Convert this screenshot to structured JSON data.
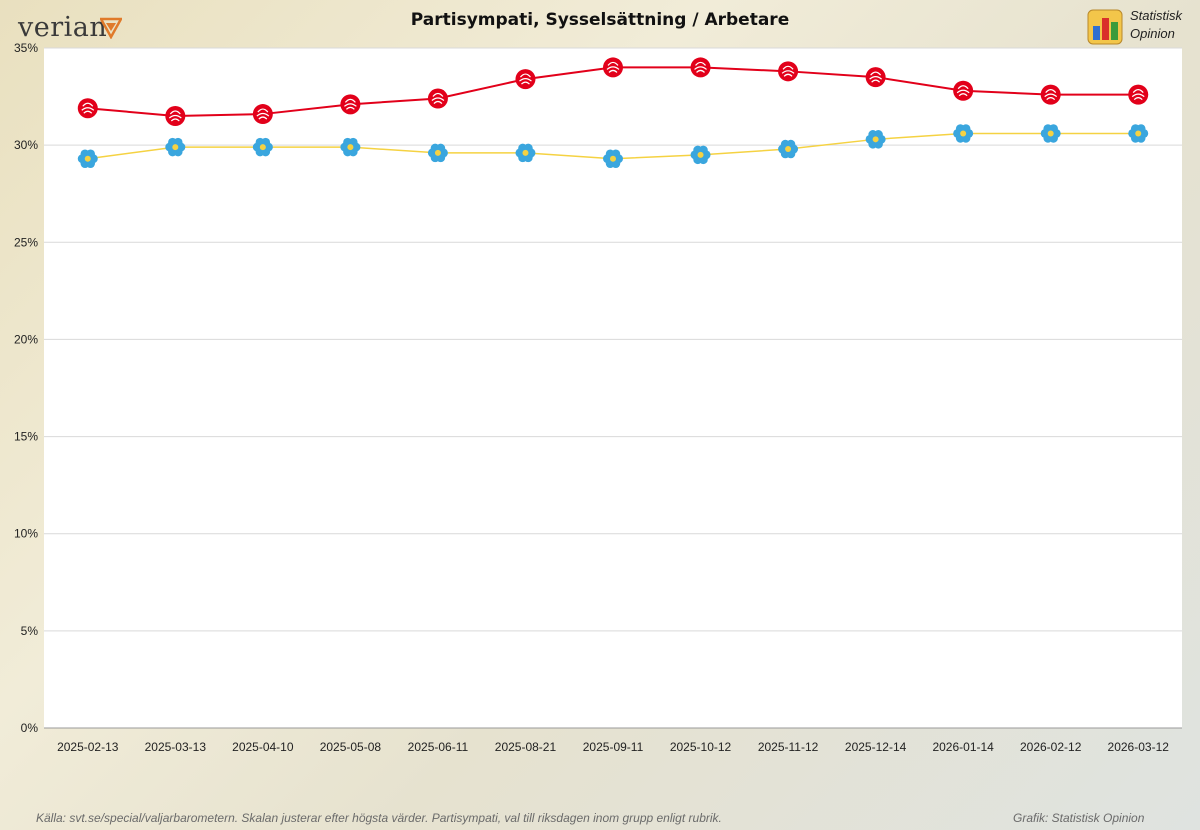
{
  "brand": {
    "logo_text": "verian",
    "publisher_line1": "Statistisk",
    "publisher_line2": "Opinion"
  },
  "footer": {
    "source": "Källa: svt.se/special/valjarbarometern.  Skalan justerar  efter högsta värder.  Partisympati,  val till riksdagen  inom grupp enligt rubrik.",
    "credit": "Grafik: Statistisk Opinion"
  },
  "colors": {
    "S": "#e2001a",
    "SD": "#f5d242",
    "SD_marker": "#3aa6de",
    "grid": "#d9d9d9"
  },
  "chart_data": {
    "type": "line",
    "title": "Partisympati, Sysselsättning / Arbetare",
    "xlabel": "",
    "ylabel": "",
    "ylim": [
      0,
      35
    ],
    "yticks": [
      "0%",
      "5%",
      "10%",
      "15%",
      "20%",
      "25%",
      "30%",
      "35%"
    ],
    "grid": true,
    "legend": "none",
    "categories": [
      "2025-02-13",
      "2025-03-13",
      "2025-04-10",
      "2025-05-08",
      "2025-06-11",
      "2025-08-21",
      "2025-09-11",
      "2025-10-12",
      "2025-11-12",
      "2025-12-14",
      "2026-01-14",
      "2026-02-12",
      "2026-03-12"
    ],
    "series": [
      {
        "marker": "rose",
        "color": "#e2001a",
        "values": [
          31.9,
          31.5,
          31.6,
          32.1,
          32.4,
          33.4,
          34.0,
          34.0,
          33.8,
          33.5,
          32.8,
          32.6,
          32.6
        ]
      },
      {
        "marker": "flower",
        "color": "#f5d242",
        "values": [
          29.3,
          29.9,
          29.9,
          29.9,
          29.6,
          29.6,
          29.3,
          29.5,
          29.8,
          30.3,
          30.6,
          30.6,
          30.6
        ]
      }
    ]
  }
}
